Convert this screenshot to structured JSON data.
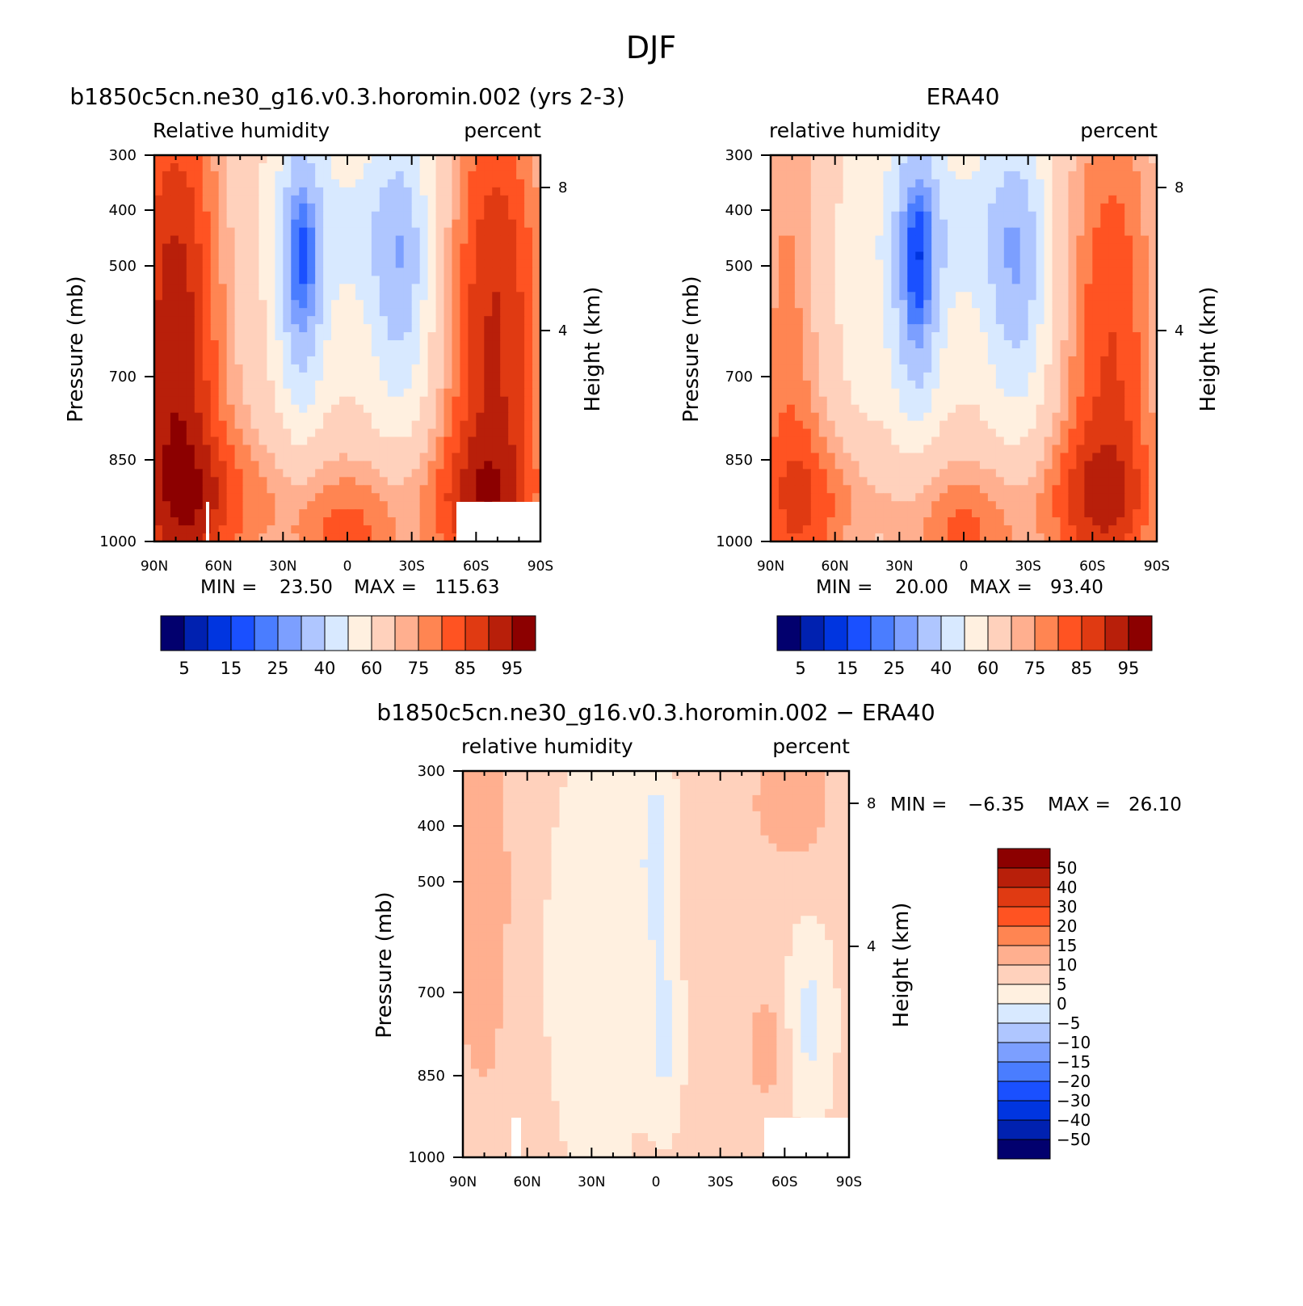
{
  "title": "DJF",
  "colors": {
    "rh_palette": [
      "#02006e",
      "#0021b0",
      "#0035e0",
      "#1a50ff",
      "#4a7dff",
      "#7c9fff",
      "#afc6ff",
      "#d8e9ff",
      "#fff0e0",
      "#ffd1bc",
      "#ffaf8f",
      "#ff8552",
      "#ff5322",
      "#e03a12",
      "#b81f0a",
      "#8c0000"
    ],
    "diff_palette": [
      "#02006e",
      "#0021b0",
      "#0035e0",
      "#1a50ff",
      "#4a7dff",
      "#7c9fff",
      "#afc6ff",
      "#d8e9ff",
      "#fff0e0",
      "#ffd1bc",
      "#ffaf8f",
      "#ff8552",
      "#ff5322",
      "#e03a12",
      "#b81f0a",
      "#8c0000"
    ]
  },
  "chart_data": [
    {
      "type": "heatmap",
      "title": "b1850c5cn.ne30_g16.v0.3.horomin.002 (yrs 2-3)",
      "left_label": "Relative humidity",
      "right_label": "percent",
      "ylabel": "Pressure (mb)",
      "y2label": "Height (km)",
      "x_ticks": [
        "90N",
        "60N",
        "30N",
        "0",
        "30S",
        "60S",
        "90S"
      ],
      "y_ticks": [
        "300",
        "400",
        "500",
        "700",
        "850",
        "1000"
      ],
      "y2_ticks": [
        "8",
        "4"
      ],
      "min_text": "MIN =",
      "min_value": "23.50",
      "max_text": "MAX =",
      "max_value": "115.63",
      "colorbar_labels": [
        "5",
        "15",
        "25",
        "40",
        "60",
        "75",
        "85",
        "95"
      ],
      "xlim": [
        -90,
        90
      ],
      "ylim": [
        1000,
        300
      ]
    },
    {
      "type": "heatmap",
      "title": "ERA40",
      "left_label": "relative humidity",
      "right_label": "percent",
      "ylabel": "Pressure (mb)",
      "y2label": "Height (km)",
      "x_ticks": [
        "90N",
        "60N",
        "30N",
        "0",
        "30S",
        "60S",
        "90S"
      ],
      "y_ticks": [
        "300",
        "400",
        "500",
        "700",
        "850",
        "1000"
      ],
      "y2_ticks": [
        "8",
        "4"
      ],
      "min_text": "MIN =",
      "min_value": "20.00",
      "max_text": "MAX =",
      "max_value": "93.40",
      "colorbar_labels": [
        "5",
        "15",
        "25",
        "40",
        "60",
        "75",
        "85",
        "95"
      ],
      "xlim": [
        -90,
        90
      ],
      "ylim": [
        1000,
        300
      ]
    },
    {
      "type": "heatmap",
      "title": "b1850c5cn.ne30_g16.v0.3.horomin.002 − ERA40",
      "left_label": "relative humidity",
      "right_label": "percent",
      "ylabel": "Pressure (mb)",
      "y2label": "Height (km)",
      "x_ticks": [
        "90N",
        "60N",
        "30N",
        "0",
        "30S",
        "60S",
        "90S"
      ],
      "y_ticks": [
        "300",
        "400",
        "500",
        "700",
        "850",
        "1000"
      ],
      "y2_ticks": [
        "8",
        "4"
      ],
      "min_text": "MIN =",
      "min_value": "−6.35",
      "max_text": "MAX =",
      "max_value": "26.10",
      "colorbar_labels": [
        "50",
        "40",
        "30",
        "20",
        "15",
        "10",
        "5",
        "0",
        "−5",
        "−10",
        "−15",
        "−20",
        "−30",
        "−40",
        "−50"
      ],
      "xlim": [
        -90,
        90
      ],
      "ylim": [
        1000,
        300
      ]
    }
  ]
}
